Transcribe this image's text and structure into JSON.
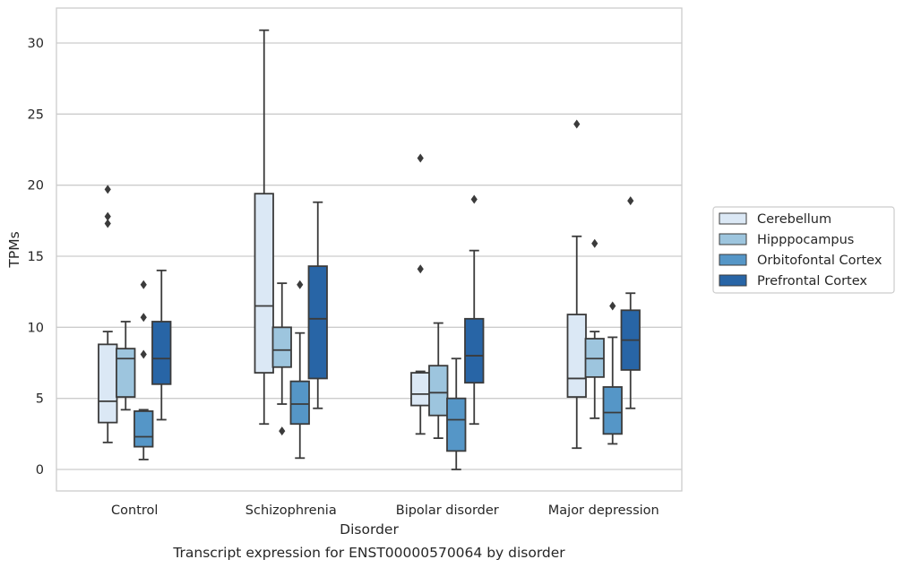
{
  "chart_data": {
    "type": "boxplot",
    "caption": "Transcript expression for ENST00000570064 by disorder",
    "xlabel": "Disorder",
    "ylabel": "TPMs",
    "ylim": [
      -1.5,
      32.5
    ],
    "yticks": [
      0,
      5,
      10,
      15,
      20,
      25,
      30
    ],
    "grid": true,
    "legend_position": "right",
    "categories": [
      "Control",
      "Schizophrenia",
      "Bipolar disorder",
      "Major depression"
    ],
    "series": [
      {
        "name": "Cerebellum",
        "color": "#dbe8f5",
        "boxes": [
          {
            "whislo": 1.9,
            "q1": 3.3,
            "med": 4.8,
            "q3": 8.8,
            "whishi": 9.7,
            "fliers": [
              19.7,
              17.8,
              17.3
            ]
          },
          {
            "whislo": 3.2,
            "q1": 6.8,
            "med": 11.5,
            "q3": 19.4,
            "whishi": 30.9,
            "fliers": []
          },
          {
            "whislo": 2.5,
            "q1": 4.5,
            "med": 5.3,
            "q3": 6.8,
            "whishi": 6.9,
            "fliers": [
              21.9,
              14.1
            ]
          },
          {
            "whislo": 1.5,
            "q1": 5.1,
            "med": 6.4,
            "q3": 10.9,
            "whishi": 16.4,
            "fliers": [
              24.3
            ]
          }
        ]
      },
      {
        "name": "Hipppocampus",
        "color": "#9dc5de",
        "boxes": [
          {
            "whislo": 4.2,
            "q1": 5.1,
            "med": 7.8,
            "q3": 8.5,
            "whishi": 10.4,
            "fliers": []
          },
          {
            "whislo": 4.6,
            "q1": 7.2,
            "med": 8.4,
            "q3": 10.0,
            "whishi": 13.1,
            "fliers": [
              2.7
            ]
          },
          {
            "whislo": 2.2,
            "q1": 3.8,
            "med": 5.4,
            "q3": 7.3,
            "whishi": 10.3,
            "fliers": []
          },
          {
            "whislo": 3.6,
            "q1": 6.5,
            "med": 7.8,
            "q3": 9.2,
            "whishi": 9.7,
            "fliers": [
              15.9
            ]
          }
        ]
      },
      {
        "name": "Orbitofontal Cortex",
        "color": "#5596c7",
        "boxes": [
          {
            "whislo": 0.7,
            "q1": 1.6,
            "med": 2.3,
            "q3": 4.1,
            "whishi": 4.2,
            "fliers": [
              13.0,
              10.7,
              8.1
            ]
          },
          {
            "whislo": 0.8,
            "q1": 3.2,
            "med": 4.6,
            "q3": 6.2,
            "whishi": 9.6,
            "fliers": [
              13.0
            ]
          },
          {
            "whislo": 0.0,
            "q1": 1.3,
            "med": 3.5,
            "q3": 5.0,
            "whishi": 7.8,
            "fliers": []
          },
          {
            "whislo": 1.8,
            "q1": 2.5,
            "med": 4.0,
            "q3": 5.8,
            "whishi": 9.3,
            "fliers": [
              11.5
            ]
          }
        ]
      },
      {
        "name": "Prefrontal Cortex",
        "color": "#2865a6",
        "boxes": [
          {
            "whislo": 3.5,
            "q1": 6.0,
            "med": 7.8,
            "q3": 10.4,
            "whishi": 14.0,
            "fliers": []
          },
          {
            "whislo": 4.3,
            "q1": 6.4,
            "med": 10.6,
            "q3": 14.3,
            "whishi": 18.8,
            "fliers": []
          },
          {
            "whislo": 3.2,
            "q1": 6.1,
            "med": 8.0,
            "q3": 10.6,
            "whishi": 15.4,
            "fliers": [
              19.0
            ]
          },
          {
            "whislo": 4.3,
            "q1": 7.0,
            "med": 9.1,
            "q3": 11.2,
            "whishi": 12.4,
            "fliers": [
              18.9
            ]
          }
        ]
      }
    ]
  }
}
